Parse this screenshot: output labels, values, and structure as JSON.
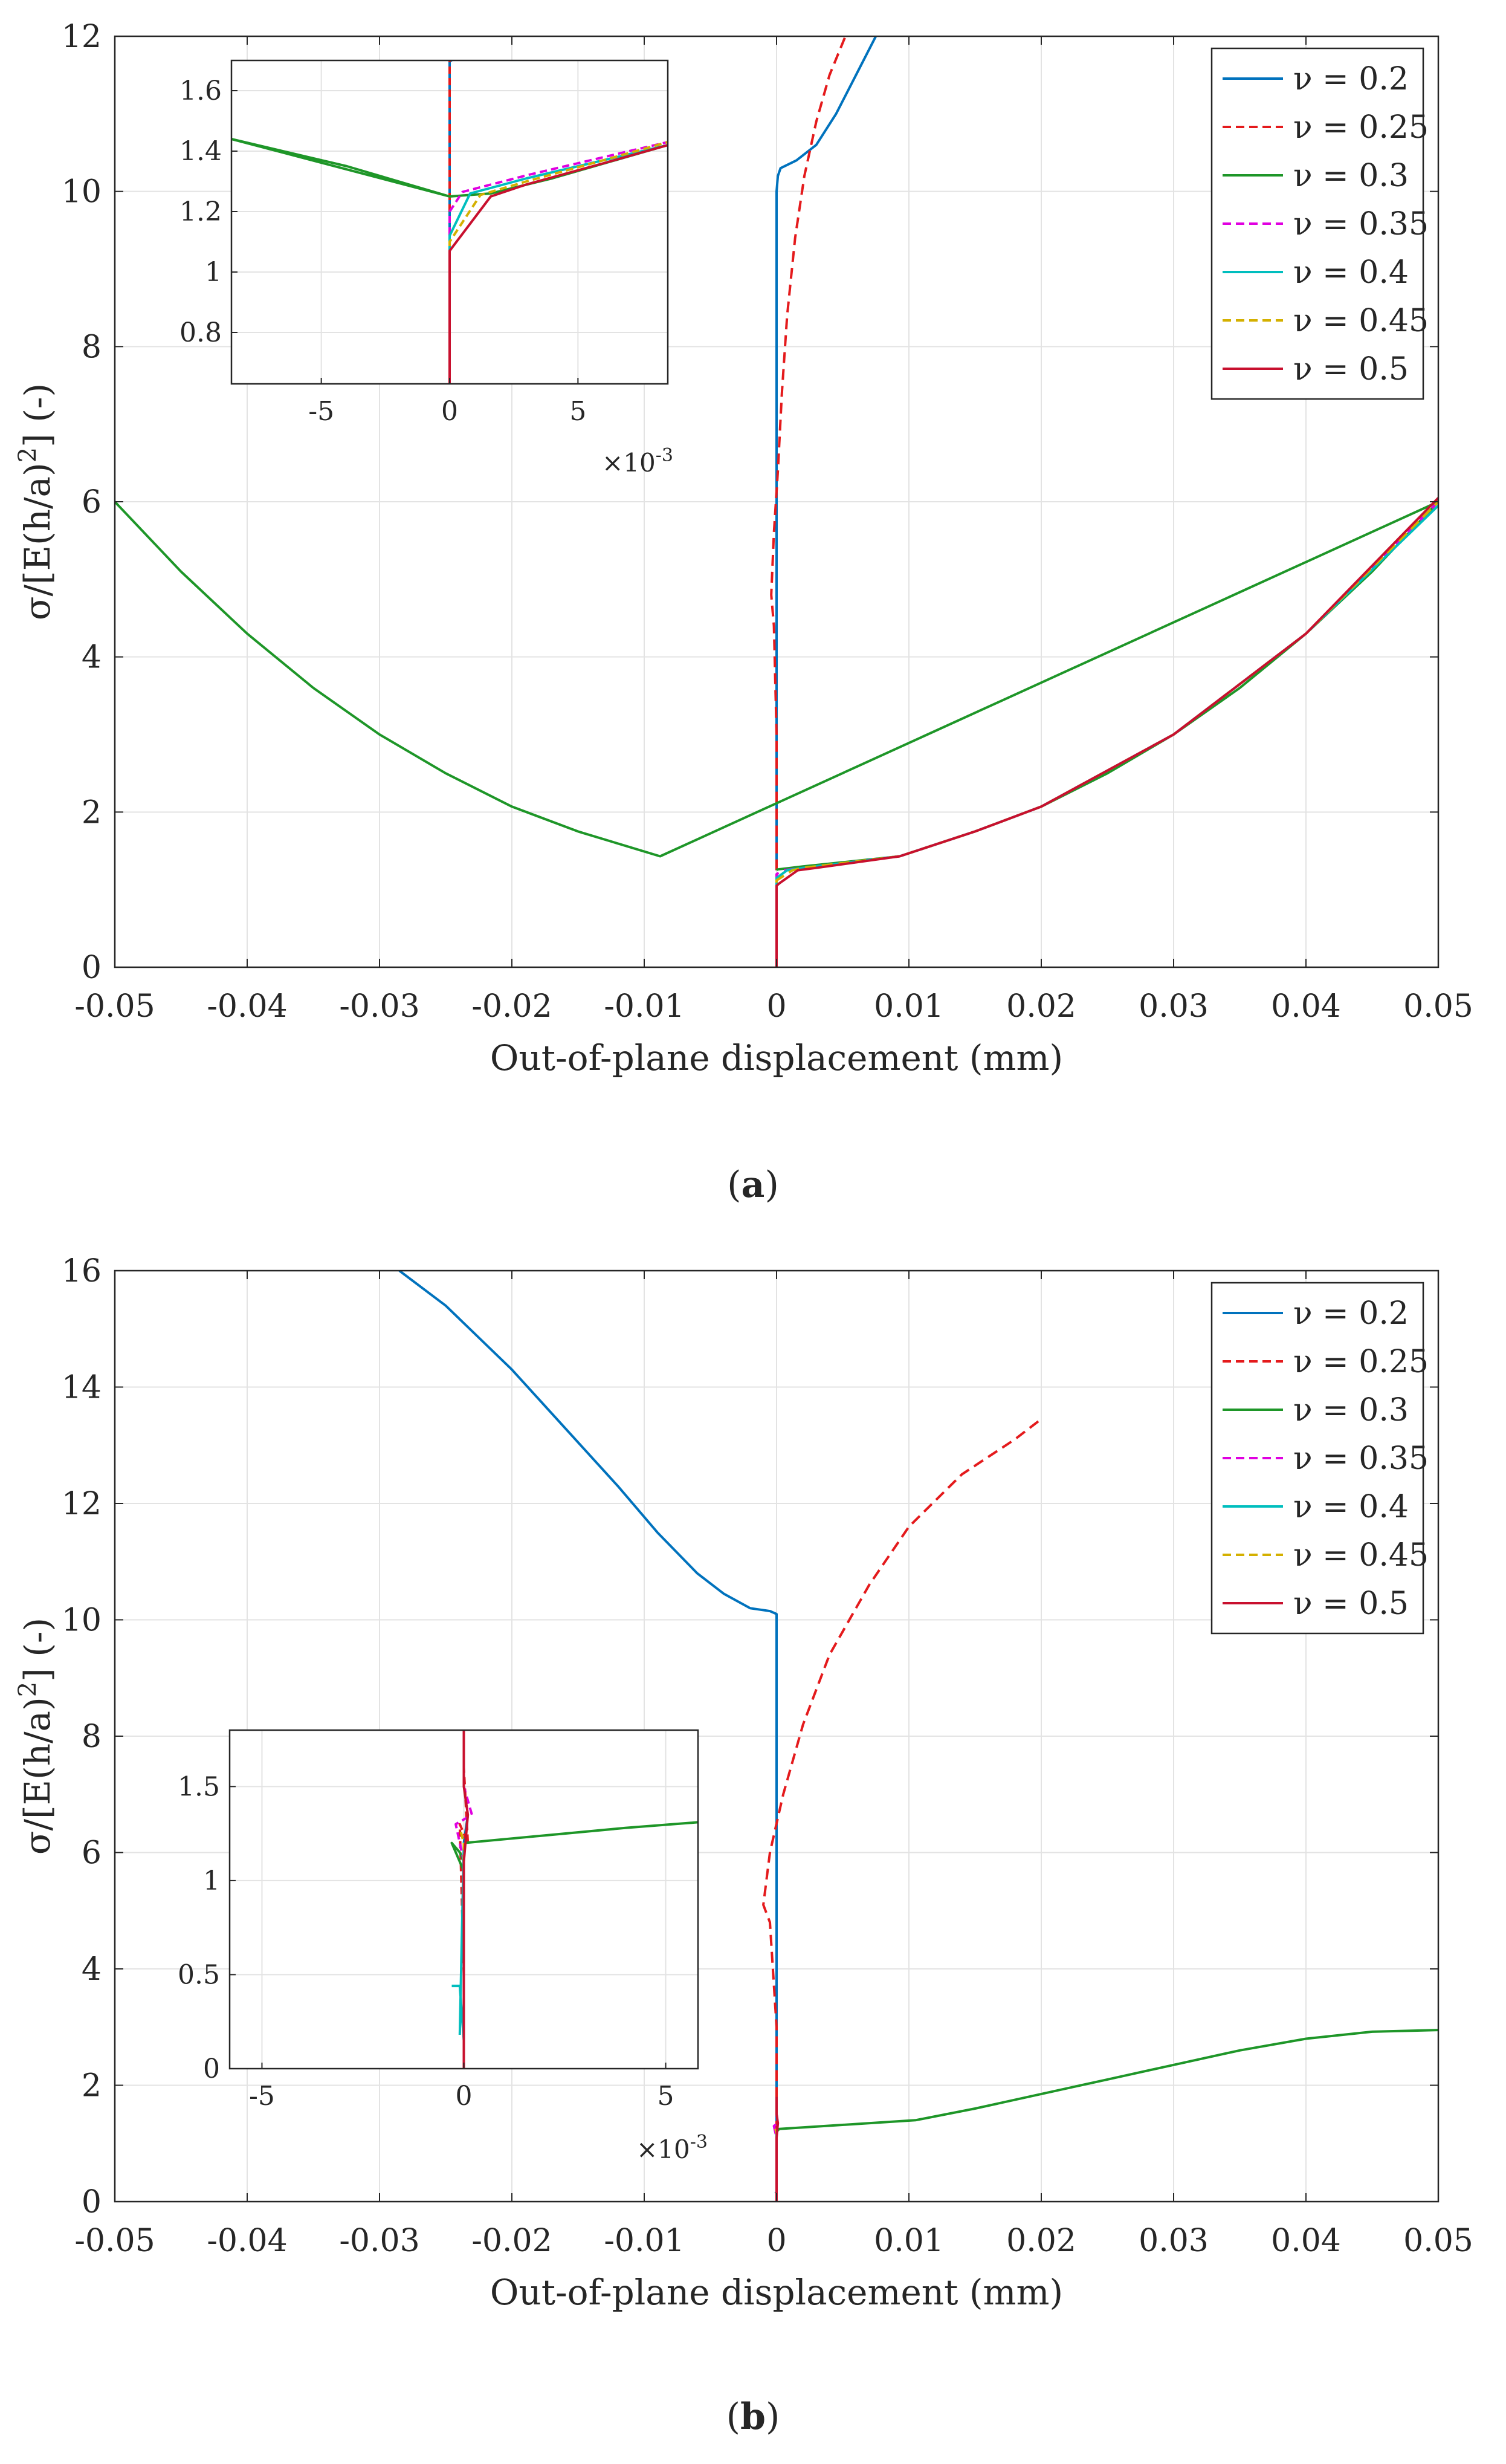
{
  "figure": {
    "panels": [
      {
        "label_prefix": "(",
        "label_letter": "a",
        "label_suffix": ")"
      },
      {
        "label_prefix": "(",
        "label_letter": "b",
        "label_suffix": ")"
      }
    ]
  },
  "chart_data": [
    {
      "type": "line",
      "panel": "a",
      "xlabel": "Out-of-plane displacement (mm)",
      "ylabel_parts": [
        "σ/[E(h/a)",
        "2",
        "] (-)"
      ],
      "xlim": [
        -0.05,
        0.05
      ],
      "ylim": [
        0,
        12
      ],
      "xticks": [
        -0.05,
        -0.04,
        -0.03,
        -0.02,
        -0.01,
        0,
        0.01,
        0.02,
        0.03,
        0.04,
        0.05
      ],
      "xtick_labels": [
        "-0.05",
        "-0.04",
        "-0.03",
        "-0.02",
        "-0.01",
        "0",
        "0.01",
        "0.02",
        "0.03",
        "0.04",
        "0.05"
      ],
      "yticks": [
        0,
        2,
        4,
        6,
        8,
        10,
        12
      ],
      "ytick_labels": [
        "0",
        "2",
        "4",
        "6",
        "8",
        "10",
        "12"
      ],
      "grid": true,
      "legend_position": "top-right",
      "series": [
        {
          "name": "ν = 0.2",
          "color": "#0072BD",
          "dash": "solid",
          "x": [
            0,
            0,
            0,
            0,
            0,
            0.0001,
            0.0003,
            0.0015,
            0.003,
            0.0045,
            0.006,
            0.0075
          ],
          "y": [
            1.25,
            3,
            4.3,
            7,
            10,
            10.2,
            10.3,
            10.4,
            10.6,
            11,
            11.5,
            12.0
          ]
        },
        {
          "name": "ν = 0.25",
          "color": "#E41A1C",
          "dash": "dashed",
          "x": [
            0,
            0,
            -0.0002,
            -0.0004,
            -0.0002,
            0.0001,
            0.0004,
            0.0008,
            0.0014,
            0.0021,
            0.003,
            0.004,
            0.0052
          ],
          "y": [
            1.25,
            3,
            4.4,
            4.8,
            5.6,
            6.4,
            7.4,
            8.4,
            9.4,
            10.2,
            10.9,
            11.5,
            12.0
          ]
        },
        {
          "name": "ν = 0.3",
          "color": "#1E9628",
          "dash": "solid",
          "x": [
            0,
            5e-05,
            0.002,
            0.0093,
            0.015,
            0.02,
            0.025,
            0.03,
            0.035,
            0.04,
            0.045,
            0.05,
            -0.0088,
            -0.015,
            -0.02,
            -0.025,
            -0.03,
            -0.035,
            -0.04,
            -0.045,
            -0.05
          ],
          "y": [
            1.25,
            1.26,
            1.3,
            1.43,
            1.75,
            2.07,
            2.5,
            3.0,
            3.6,
            4.3,
            5.1,
            6.0,
            1.43,
            1.75,
            2.07,
            2.5,
            3.0,
            3.6,
            4.3,
            5.1,
            6.0
          ]
        },
        {
          "name": "ν = 0.35",
          "color": "#E000E0",
          "dash": "dashed",
          "x": [
            0,
            0,
            0,
            0.0005,
            0.002,
            0.0093,
            0.015,
            0.02,
            0.03,
            0.04,
            0.05
          ],
          "y": [
            0,
            1.1,
            1.2,
            1.25,
            1.28,
            1.43,
            1.75,
            2.07,
            3.0,
            4.3,
            6.0
          ]
        },
        {
          "name": "ν = 0.4",
          "color": "#00BEBE",
          "dash": "solid",
          "x": [
            0,
            0,
            0,
            0.0008,
            0.002,
            0.0093,
            0.015,
            0.02,
            0.03,
            0.04,
            0.05
          ],
          "y": [
            0,
            1.1,
            1.15,
            1.25,
            1.28,
            1.43,
            1.75,
            2.07,
            3.0,
            4.3,
            5.95
          ]
        },
        {
          "name": "ν = 0.45",
          "color": "#D4B000",
          "dash": "dashed",
          "x": [
            0,
            0,
            0,
            0.0012,
            0.002,
            0.0093,
            0.015,
            0.02,
            0.03,
            0.04,
            0.05
          ],
          "y": [
            0,
            1.08,
            1.12,
            1.25,
            1.28,
            1.43,
            1.75,
            2.07,
            3.0,
            4.3,
            6.0
          ]
        },
        {
          "name": "ν = 0.5",
          "color": "#C8102E",
          "dash": "solid",
          "x": [
            0,
            0,
            0.0002,
            0.0016,
            0.003,
            0.0093,
            0.015,
            0.02,
            0.03,
            0.04,
            0.05
          ],
          "y": [
            0,
            1.05,
            1.08,
            1.25,
            1.28,
            1.43,
            1.75,
            2.07,
            3.0,
            4.3,
            6.05
          ]
        }
      ],
      "inset": {
        "xlim": [
          -0.0085,
          0.0085
        ],
        "ylim": [
          0.63,
          1.7
        ],
        "xticks": [
          -0.005,
          0,
          0.005
        ],
        "xtick_labels": [
          "-5",
          "0",
          "5"
        ],
        "yticks": [
          0.8,
          1,
          1.2,
          1.4,
          1.6
        ],
        "ytick_labels": [
          "0.8",
          "1",
          "1.2",
          "1.4",
          "1.6"
        ],
        "x_multiplier_base": "×10",
        "x_multiplier_exp": "-3",
        "series": [
          {
            "name": "ν = 0.2",
            "x": [
              0,
              0,
              0,
              0.0001
            ],
            "y": [
              0.63,
              1.15,
              1.7,
              1.7
            ]
          },
          {
            "name": "ν = 0.25",
            "x": [
              0,
              0,
              0
            ],
            "y": [
              0.63,
              1.2,
              1.7
            ]
          },
          {
            "name": "ν = 0.3",
            "x": [
              0,
              -0.002,
              -0.004,
              -0.0085,
              0,
              0.0016,
              0.004,
              0.0085
            ],
            "y": [
              1.25,
              1.3,
              1.35,
              1.44,
              1.25,
              1.26,
              1.31,
              1.42
            ]
          },
          {
            "name": "ν = 0.35",
            "x": [
              0,
              0,
              0.0005,
              0.003,
              0.006,
              0.0085
            ],
            "y": [
              0.63,
              1.2,
              1.265,
              1.32,
              1.38,
              1.43
            ]
          },
          {
            "name": "ν = 0.4",
            "x": [
              0,
              0,
              0.0008,
              0.003,
              0.006,
              0.0085
            ],
            "y": [
              0.63,
              1.12,
              1.26,
              1.31,
              1.37,
              1.42
            ]
          },
          {
            "name": "ν = 0.45",
            "x": [
              0,
              0,
              0.0012,
              0.003,
              0.006,
              0.0085
            ],
            "y": [
              0.63,
              1.1,
              1.255,
              1.3,
              1.37,
              1.43
            ]
          },
          {
            "name": "ν = 0.5",
            "x": [
              0,
              0,
              0.0016,
              0.003,
              0.006,
              0.0085
            ],
            "y": [
              0.63,
              1.07,
              1.25,
              1.29,
              1.36,
              1.42
            ]
          }
        ]
      }
    },
    {
      "type": "line",
      "panel": "b",
      "xlabel": "Out-of-plane displacement (mm)",
      "ylabel_parts": [
        "σ/[E(h/a)",
        "2",
        "] (-)"
      ],
      "xlim": [
        -0.05,
        0.05
      ],
      "ylim": [
        0,
        16
      ],
      "xticks": [
        -0.05,
        -0.04,
        -0.03,
        -0.02,
        -0.01,
        0,
        0.01,
        0.02,
        0.03,
        0.04,
        0.05
      ],
      "xtick_labels": [
        "-0.05",
        "-0.04",
        "-0.03",
        "-0.02",
        "-0.01",
        "0",
        "0.01",
        "0.02",
        "0.03",
        "0.04",
        "0.05"
      ],
      "yticks": [
        0,
        2,
        4,
        6,
        8,
        10,
        12,
        14,
        16
      ],
      "ytick_labels": [
        "0",
        "2",
        "4",
        "6",
        "8",
        "10",
        "12",
        "14",
        "16"
      ],
      "grid": true,
      "legend_position": "top-right",
      "series": [
        {
          "name": "ν = 0.2",
          "color": "#0072BD",
          "dash": "solid",
          "x": [
            0,
            0,
            0,
            -0.0005,
            -0.002,
            -0.004,
            -0.006,
            -0.009,
            -0.012,
            -0.016,
            -0.02,
            -0.025,
            -0.0285
          ],
          "y": [
            1.2,
            4,
            10.1,
            10.15,
            10.2,
            10.45,
            10.8,
            11.5,
            12.3,
            13.3,
            14.3,
            15.4,
            16.0
          ]
        },
        {
          "name": "ν = 0.25",
          "color": "#E41A1C",
          "dash": "dashed",
          "x": [
            0,
            0,
            -0.0005,
            -0.001,
            -0.0005,
            0.0005,
            0.002,
            0.004,
            0.007,
            0.01,
            0.014,
            0.018,
            0.02
          ],
          "y": [
            1.2,
            3,
            4.8,
            5.1,
            6,
            7,
            8.2,
            9.4,
            10.6,
            11.6,
            12.5,
            13.1,
            13.45
          ]
        },
        {
          "name": "ν = 0.3",
          "color": "#1E9628",
          "dash": "solid",
          "x": [
            0,
            0.0002,
            0.0105,
            0.015,
            0.02,
            0.025,
            0.03,
            0.035,
            0.04,
            0.045,
            0.05
          ],
          "y": [
            1.2,
            1.25,
            1.4,
            1.6,
            1.85,
            2.1,
            2.35,
            2.6,
            2.8,
            2.92,
            2.95
          ]
        },
        {
          "name": "ν = 0.35",
          "color": "#E000E0",
          "dash": "dashed",
          "x": [
            0,
            0,
            -0.0002,
            0.0001,
            0
          ],
          "y": [
            0,
            1.1,
            1.3,
            1.35,
            1.5
          ]
        },
        {
          "name": "ν = 0.4",
          "color": "#00BEBE",
          "dash": "solid",
          "x": [
            -0.0001,
            0,
            0
          ],
          "y": [
            0.17,
            0.15,
            1.2
          ]
        },
        {
          "name": "ν = 0.45",
          "color": "#D4B000",
          "dash": "dashed",
          "x": [
            0,
            0,
            -0.0001
          ],
          "y": [
            0,
            1.2,
            1.25
          ]
        },
        {
          "name": "ν = 0.5",
          "color": "#C8102E",
          "dash": "solid",
          "x": [
            0,
            0,
            0.0001,
            0,
            0
          ],
          "y": [
            0,
            1.1,
            1.35,
            1.5,
            1.8
          ]
        }
      ],
      "inset": {
        "xlim": [
          -0.0058,
          0.0058
        ],
        "ylim": [
          0,
          1.8
        ],
        "xticks": [
          -0.005,
          0,
          0.005
        ],
        "xtick_labels": [
          "-5",
          "0",
          "5"
        ],
        "yticks": [
          0,
          0.5,
          1,
          1.5
        ],
        "ytick_labels": [
          "0",
          "0.5",
          "1",
          "1.5"
        ],
        "x_multiplier_base": "×10",
        "x_multiplier_exp": "-3",
        "series": [
          {
            "name": "ν = 0.2",
            "x": [
              0,
              0,
              0.0001
            ],
            "y": [
              0,
              1.2,
              1.35
            ]
          },
          {
            "name": "ν = 0.25",
            "x": [
              0,
              -0.0001,
              0.0001,
              0
            ],
            "y": [
              0.5,
              1.3,
              1.2,
              1.6
            ]
          },
          {
            "name": "ν = 0.3",
            "x": [
              0,
              -0.0003,
              -0.0001,
              0,
              0,
              0.002,
              0.004,
              0.0058
            ],
            "y": [
              1.05,
              1.2,
              1.15,
              1.1,
              1.2,
              1.24,
              1.28,
              1.31
            ]
          },
          {
            "name": "ν = 0.35",
            "x": [
              0,
              0,
              -0.0002,
              0.0002,
              0
            ],
            "y": [
              0,
              1.1,
              1.3,
              1.35,
              1.5
            ]
          },
          {
            "name": "ν = 0.4",
            "x": [
              -0.0003,
              -0.0001,
              0,
              0,
              -0.0001
            ],
            "y": [
              0.44,
              0.44,
              0.15,
              1.2,
              0.18
            ]
          },
          {
            "name": "ν = 0.45",
            "x": [
              0,
              0,
              -0.0001
            ],
            "y": [
              0,
              1.2,
              1.28
            ]
          },
          {
            "name": "ν = 0.5",
            "x": [
              0,
              0,
              0.0001,
              0,
              0
            ],
            "y": [
              0,
              1.1,
              1.35,
              1.5,
              1.8
            ]
          }
        ]
      }
    }
  ]
}
